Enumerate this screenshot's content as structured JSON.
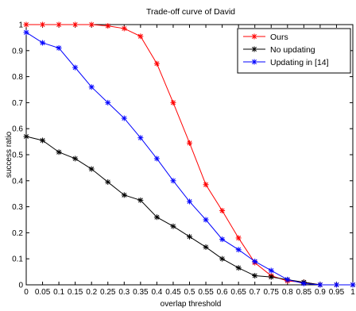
{
  "chart_data": {
    "type": "line",
    "title": "Trade-off curve of David",
    "xlabel": "overlap threshold",
    "ylabel": "success ratio",
    "xlim": [
      0,
      1
    ],
    "ylim": [
      0,
      1
    ],
    "x": [
      0,
      0.05,
      0.1,
      0.15,
      0.2,
      0.25,
      0.3,
      0.35,
      0.4,
      0.45,
      0.5,
      0.55,
      0.6,
      0.65,
      0.7,
      0.75,
      0.8,
      0.85,
      0.9,
      0.95,
      1
    ],
    "x_tick_labels": [
      "0",
      "0.05",
      "0.1",
      "0.15",
      "0.2",
      "0.25",
      "0.3",
      "0.35",
      "0.4",
      "0.45",
      "0.5",
      "0.55",
      "0.6",
      "0.65",
      "0.7",
      "0.75",
      "0.8",
      "0.85",
      "0.9",
      "0.95",
      "1"
    ],
    "y_ticks": [
      0,
      0.1,
      0.2,
      0.3,
      0.4,
      0.5,
      0.6,
      0.7,
      0.8,
      0.9,
      1
    ],
    "y_tick_labels": [
      "0",
      "0.1",
      "0.2",
      "0.3",
      "0.4",
      "0.5",
      "0.6",
      "0.7",
      "0.8",
      "0.9",
      "1"
    ],
    "grid": false,
    "legend_position": "top-right",
    "series": [
      {
        "name": "Ours",
        "color": "#ff0000",
        "marker": "star",
        "values": [
          1,
          1,
          1,
          1,
          1,
          0.995,
          0.985,
          0.955,
          0.85,
          0.7,
          0.545,
          0.385,
          0.285,
          0.18,
          0.085,
          0.035,
          0.015,
          0.01,
          0,
          0,
          0
        ]
      },
      {
        "name": "No updating",
        "color": "#000000",
        "marker": "star",
        "values": [
          0.57,
          0.555,
          0.51,
          0.485,
          0.445,
          0.395,
          0.345,
          0.325,
          0.26,
          0.225,
          0.185,
          0.145,
          0.1,
          0.065,
          0.035,
          0.03,
          0.02,
          0.01,
          0,
          0,
          0
        ]
      },
      {
        "name": "Updating in [14]",
        "color": "#0000ff",
        "marker": "star",
        "values": [
          0.97,
          0.93,
          0.91,
          0.835,
          0.76,
          0.7,
          0.64,
          0.565,
          0.485,
          0.4,
          0.32,
          0.25,
          0.175,
          0.135,
          0.09,
          0.055,
          0.02,
          0.005,
          0,
          0,
          0
        ]
      }
    ]
  }
}
